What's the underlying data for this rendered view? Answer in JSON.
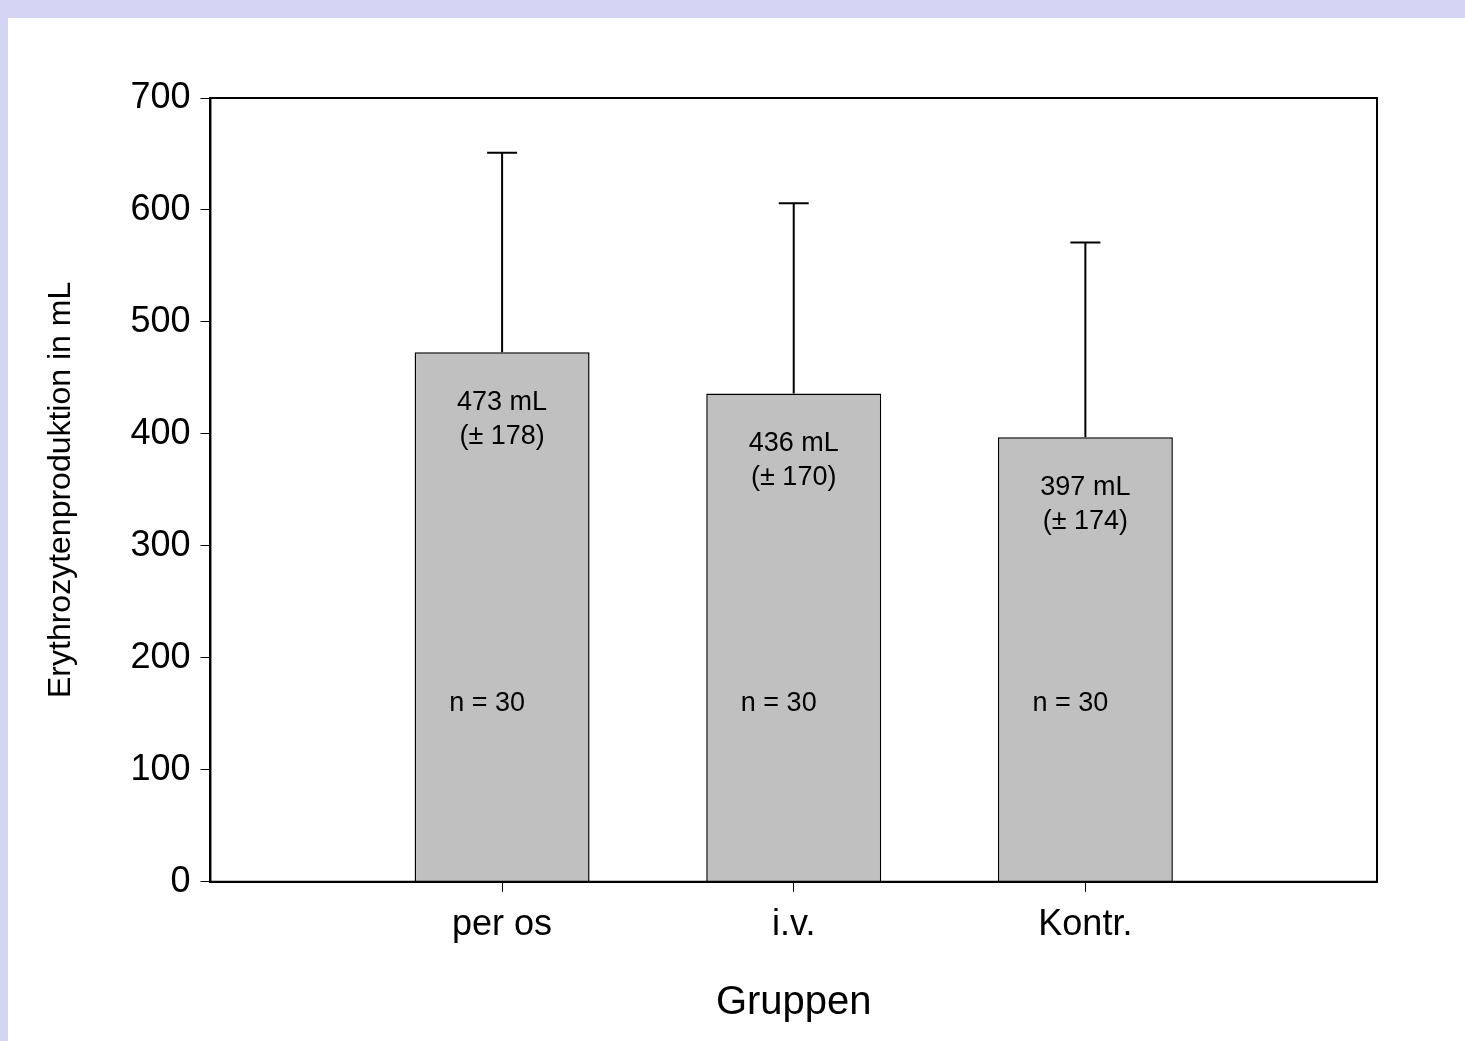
{
  "chart_data": {
    "type": "bar",
    "xlabel": "Gruppen",
    "ylabel": "Erythrozytenproduktion in mL",
    "categories": [
      "per os",
      "i.v.",
      "Kontr."
    ],
    "values": [
      473,
      436,
      397
    ],
    "color": "#c0c0c0",
    "errors": [
      [
        473,
        651
      ],
      [
        436,
        606
      ],
      [
        397,
        571
      ]
    ],
    "ylim": [
      0,
      700
    ],
    "yticks": [
      0,
      100,
      200,
      300,
      400,
      500,
      600,
      700
    ],
    "grid": false,
    "legend": false,
    "value_labels": [
      "473 mL\n(± 178)",
      "436 mL\n(± 170)",
      "397 mL\n(± 174)"
    ],
    "annotations": [
      "n = 30",
      "n = 30",
      "n = 30"
    ]
  }
}
